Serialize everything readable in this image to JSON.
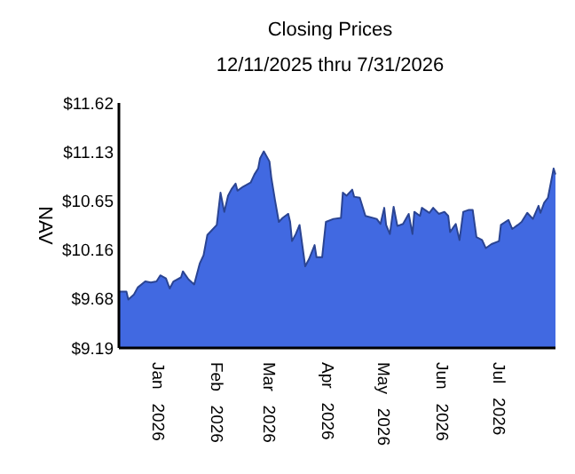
{
  "chart_data": {
    "type": "area",
    "title": "Closing Prices",
    "subtitle": "12/11/2025 thru 7/31/2026",
    "ylabel": "NAV",
    "x": [
      "2025-12-11",
      "2025-12-15",
      "2025-12-16",
      "2025-12-19",
      "2025-12-21",
      "2025-12-25",
      "2025-12-28",
      "2025-12-31",
      "2026-01-02",
      "2026-01-05",
      "2026-01-07",
      "2026-01-09",
      "2026-01-13",
      "2026-01-14",
      "2026-01-17",
      "2026-01-20",
      "2026-01-23",
      "2026-01-25",
      "2026-01-27",
      "2026-01-29",
      "2026-02-01",
      "2026-02-03",
      "2026-02-05",
      "2026-02-07",
      "2026-02-09",
      "2026-02-11",
      "2026-02-12",
      "2026-02-15",
      "2026-02-19",
      "2026-02-21",
      "2026-02-23",
      "2026-02-24",
      "2026-02-26",
      "2026-03-01",
      "2026-03-02",
      "2026-03-04",
      "2026-03-06",
      "2026-03-08",
      "2026-03-11",
      "2026-03-12",
      "2026-03-13",
      "2026-03-15",
      "2026-03-17",
      "2026-03-20",
      "2026-03-22",
      "2026-03-25",
      "2026-03-26",
      "2026-03-29",
      "2026-03-31",
      "2026-04-04",
      "2026-04-08",
      "2026-04-09",
      "2026-04-11",
      "2026-04-14",
      "2026-04-15",
      "2026-04-18",
      "2026-04-21",
      "2026-04-27",
      "2026-04-29",
      "2026-05-01",
      "2026-05-02",
      "2026-05-04",
      "2026-05-06",
      "2026-05-08",
      "2026-05-11",
      "2026-05-14",
      "2026-05-16",
      "2026-05-17",
      "2026-05-20",
      "2026-05-21",
      "2026-05-25",
      "2026-05-27",
      "2026-05-30",
      "2026-06-02",
      "2026-06-04",
      "2026-06-05",
      "2026-06-08",
      "2026-06-10",
      "2026-06-12",
      "2026-06-15",
      "2026-06-17",
      "2026-06-19",
      "2026-06-22",
      "2026-06-24",
      "2026-06-27",
      "2026-07-01",
      "2026-07-02",
      "2026-07-06",
      "2026-07-08",
      "2026-07-11",
      "2026-07-13",
      "2026-07-16",
      "2026-07-19",
      "2026-07-22",
      "2026-07-23",
      "2026-07-25",
      "2026-07-27",
      "2026-07-30",
      "2026-07-31"
    ],
    "series": [
      {
        "color": "#4169e1",
        "values": [
          9.75,
          9.75,
          9.67,
          9.72,
          9.79,
          9.85,
          9.84,
          9.85,
          9.91,
          9.88,
          9.78,
          9.85,
          9.89,
          9.95,
          9.87,
          9.82,
          10.03,
          10.11,
          10.31,
          10.35,
          10.41,
          10.73,
          10.54,
          10.7,
          10.77,
          10.82,
          10.75,
          10.79,
          10.83,
          10.91,
          10.97,
          11.07,
          11.14,
          11.04,
          10.88,
          10.65,
          10.44,
          10.48,
          10.52,
          10.44,
          10.25,
          10.32,
          10.41,
          10.0,
          10.07,
          10.21,
          10.09,
          10.09,
          10.44,
          10.47,
          10.48,
          10.73,
          10.7,
          10.76,
          10.69,
          10.68,
          10.5,
          10.47,
          10.42,
          10.58,
          10.41,
          10.32,
          10.59,
          10.4,
          10.42,
          10.52,
          10.32,
          10.54,
          10.5,
          10.58,
          10.53,
          10.58,
          10.52,
          10.54,
          10.5,
          10.34,
          10.42,
          10.26,
          10.54,
          10.56,
          10.56,
          10.29,
          10.26,
          10.18,
          10.22,
          10.25,
          10.41,
          10.46,
          10.37,
          10.41,
          10.44,
          10.53,
          10.47,
          10.6,
          10.53,
          10.63,
          10.68,
          10.97,
          10.91
        ]
      }
    ],
    "xlim": [
      "2025-12-11",
      "2026-07-31"
    ],
    "xticks": [
      {
        "value": "2026-01-01",
        "label": "Jan 2026"
      },
      {
        "value": "2026-02-01",
        "label": "Feb 2026"
      },
      {
        "value": "2026-03-01",
        "label": "Mar 2026"
      },
      {
        "value": "2026-04-01",
        "label": "Apr 2026"
      },
      {
        "value": "2026-05-01",
        "label": "May 2026"
      },
      {
        "value": "2026-06-01",
        "label": "Jun 2026"
      },
      {
        "value": "2026-07-01",
        "label": "Jul 2026"
      }
    ],
    "ylim": [
      9.19,
      11.62
    ],
    "yticks": [
      {
        "value": 9.19,
        "label": "$9.19"
      },
      {
        "value": 9.68,
        "label": "$9.68"
      },
      {
        "value": 10.16,
        "label": "$10.16"
      },
      {
        "value": 10.65,
        "label": "$10.65"
      },
      {
        "value": 11.13,
        "label": "$11.13"
      },
      {
        "value": 11.62,
        "label": "$11.62"
      }
    ],
    "tick_labels": "xy"
  }
}
